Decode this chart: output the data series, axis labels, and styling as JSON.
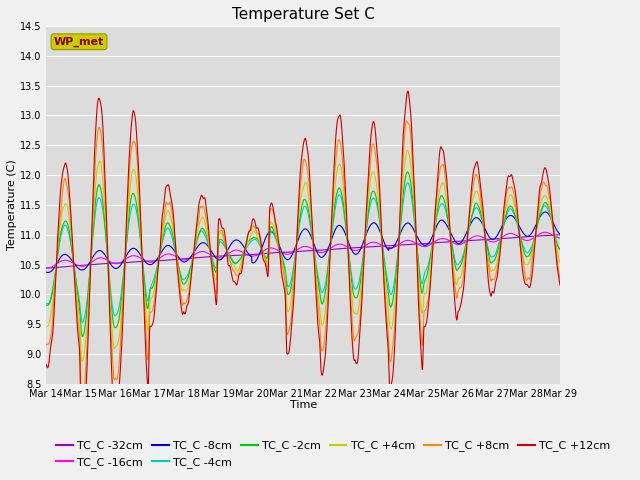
{
  "title": "Temperature Set C",
  "xlabel": "Time",
  "ylabel": "Temperature (C)",
  "ylim": [
    8.5,
    14.5
  ],
  "x_tick_labels": [
    "Mar 14",
    "Mar 15",
    "Mar 16",
    "Mar 17",
    "Mar 18",
    "Mar 19",
    "Mar 20",
    "Mar 21",
    "Mar 22",
    "Mar 23",
    "Mar 24",
    "Mar 25",
    "Mar 26",
    "Mar 27",
    "Mar 28",
    "Mar 29"
  ],
  "legend_entries": [
    {
      "label": "TC_C -32cm",
      "color": "#9900cc"
    },
    {
      "label": "TC_C -16cm",
      "color": "#ff00ff"
    },
    {
      "label": "TC_C -8cm",
      "color": "#0000cc"
    },
    {
      "label": "TC_C -4cm",
      "color": "#00cccc"
    },
    {
      "label": "TC_C -2cm",
      "color": "#00cc00"
    },
    {
      "label": "TC_C +4cm",
      "color": "#cccc00"
    },
    {
      "label": "TC_C +8cm",
      "color": "#ff8800"
    },
    {
      "label": "TC_C +12cm",
      "color": "#cc0000"
    }
  ],
  "wp_met_box_color": "#cccc00",
  "wp_met_text_color": "#880000",
  "background_color": "#dcdcdc",
  "fig_background_color": "#f0f0f0",
  "grid_color": "#ffffff",
  "title_fontsize": 11,
  "axis_fontsize": 8,
  "tick_fontsize": 7,
  "legend_fontsize": 8
}
